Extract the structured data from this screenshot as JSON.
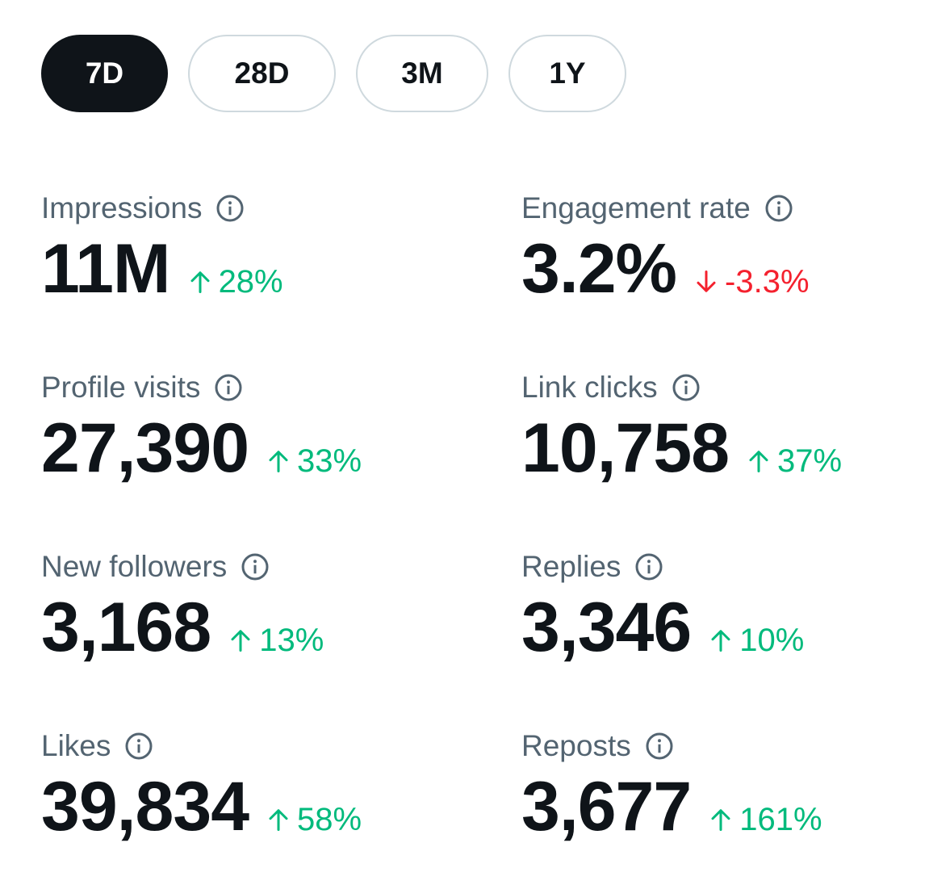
{
  "tabs": [
    {
      "label": "7D",
      "active": true
    },
    {
      "label": "28D",
      "active": false
    },
    {
      "label": "3M",
      "active": false
    },
    {
      "label": "1Y",
      "active": false
    }
  ],
  "colors": {
    "up": "#00ba7c",
    "down": "#f4212e",
    "label": "#536471",
    "value": "#0f1419"
  },
  "metrics": {
    "impressions": {
      "label": "Impressions",
      "value": "11M",
      "change": "28%",
      "direction": "up",
      "icon": "info-icon"
    },
    "engagement_rate": {
      "label": "Engagement rate",
      "value": "3.2%",
      "change": "-3.3%",
      "direction": "down",
      "icon": "info-icon"
    },
    "profile_visits": {
      "label": "Profile visits",
      "value": "27,390",
      "change": "33%",
      "direction": "up",
      "icon": "info-icon"
    },
    "link_clicks": {
      "label": "Link clicks",
      "value": "10,758",
      "change": "37%",
      "direction": "up",
      "icon": "info-icon"
    },
    "new_followers": {
      "label": "New followers",
      "value": "3,168",
      "change": "13%",
      "direction": "up",
      "icon": "info-icon"
    },
    "replies": {
      "label": "Replies",
      "value": "3,346",
      "change": "10%",
      "direction": "up",
      "icon": "info-icon"
    },
    "likes": {
      "label": "Likes",
      "value": "39,834",
      "change": "58%",
      "direction": "up",
      "icon": "info-icon"
    },
    "reposts": {
      "label": "Reposts",
      "value": "3,677",
      "change": "161%",
      "direction": "up",
      "icon": "info-icon"
    }
  }
}
